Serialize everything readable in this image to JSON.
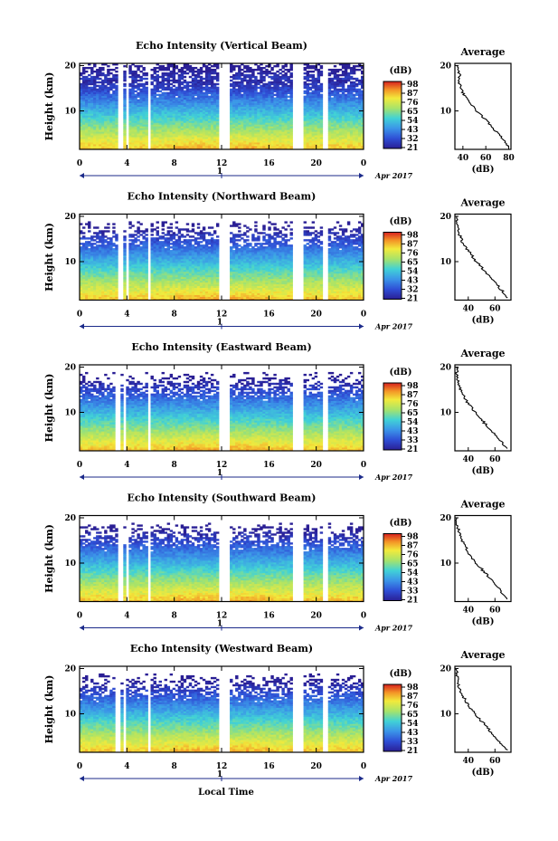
{
  "chart_data": [
    {
      "type": "heatmap",
      "title": "Echo Intensity (Vertical Beam)",
      "ylabel": "Height (km)",
      "x_ticks": [
        "0",
        "4",
        "8",
        "12",
        "16",
        "20",
        "0"
      ],
      "y_ticks": [
        "10",
        "20"
      ],
      "xlim": [
        0,
        24
      ],
      "ylim": [
        1.5,
        20.5
      ],
      "date_marker": "1",
      "date_label": "Apr 2017",
      "colorbar": {
        "label": "(dB)",
        "ticks": [
          "98",
          "87",
          "76",
          "65",
          "54",
          "43",
          "32",
          "21"
        ]
      },
      "data_gaps_hours": [
        [
          3.3,
          3.6
        ],
        [
          4.0,
          4.2
        ],
        [
          5.8,
          6.1
        ],
        [
          11.8,
          12.7
        ],
        [
          18.0,
          18.9
        ],
        [
          20.5,
          20.9
        ]
      ],
      "profile": {
        "title": "Average",
        "xlabel": "(dB)",
        "x_ticks": [
          "40",
          "60",
          "80"
        ],
        "xlim": [
          33,
          82
        ],
        "y_ticks": [
          "10",
          "20"
        ],
        "heights": [
          2,
          4,
          6,
          8,
          10,
          12,
          14,
          16,
          17,
          18,
          19,
          20
        ],
        "values": [
          80,
          74,
          67,
          60,
          52,
          45,
          40,
          37,
          36,
          38,
          35,
          36
        ]
      }
    },
    {
      "type": "heatmap",
      "title": "Echo Intensity (Northward Beam)",
      "ylabel": "Height (km)",
      "x_ticks": [
        "0",
        "4",
        "8",
        "12",
        "16",
        "20",
        "0"
      ],
      "y_ticks": [
        "10",
        "20"
      ],
      "xlim": [
        0,
        24
      ],
      "ylim": [
        1.5,
        20.5
      ],
      "date_marker": "1",
      "date_label": "Apr 2017",
      "colorbar": {
        "label": "(dB)",
        "ticks": [
          "98",
          "87",
          "76",
          "65",
          "54",
          "43",
          "32",
          "21"
        ]
      },
      "data_gaps_hours": [
        [
          3.3,
          3.6
        ],
        [
          3.9,
          4.1
        ],
        [
          5.8,
          6.1
        ],
        [
          11.8,
          12.7
        ],
        [
          18.0,
          18.9
        ],
        [
          20.5,
          20.9
        ]
      ],
      "profile": {
        "title": "Average",
        "xlabel": "(dB)",
        "x_ticks": [
          "40",
          "60"
        ],
        "xlim": [
          30,
          72
        ],
        "y_ticks": [
          "10",
          "20"
        ],
        "heights": [
          2,
          4,
          6,
          8,
          10,
          12,
          14,
          15,
          16,
          18,
          20
        ],
        "values": [
          70,
          64,
          58,
          52,
          46,
          41,
          36,
          35,
          33,
          32,
          31
        ]
      }
    },
    {
      "type": "heatmap",
      "title": "Echo Intensity (Eastward Beam)",
      "ylabel": "Height (km)",
      "x_ticks": [
        "0",
        "4",
        "8",
        "12",
        "16",
        "20",
        "0"
      ],
      "y_ticks": [
        "10",
        "20"
      ],
      "xlim": [
        0,
        24
      ],
      "ylim": [
        1.5,
        20.5
      ],
      "date_marker": "1",
      "date_label": "Apr 2017",
      "colorbar": {
        "label": "(dB)",
        "ticks": [
          "98",
          "87",
          "76",
          "65",
          "54",
          "43",
          "33",
          "21"
        ]
      },
      "data_gaps_hours": [
        [
          3.1,
          3.4
        ],
        [
          3.8,
          4.0
        ],
        [
          5.8,
          6.1
        ],
        [
          11.8,
          12.7
        ],
        [
          18.0,
          18.9
        ],
        [
          20.5,
          20.9
        ]
      ],
      "profile": {
        "title": "Average",
        "xlabel": "(dB)",
        "x_ticks": [
          "40",
          "60"
        ],
        "xlim": [
          30,
          72
        ],
        "y_ticks": [
          "10",
          "20"
        ],
        "heights": [
          2,
          4,
          6,
          8,
          10,
          12,
          14,
          15,
          16,
          18,
          20
        ],
        "values": [
          69,
          63,
          57,
          51,
          45,
          40,
          36,
          34,
          33,
          32,
          31
        ]
      }
    },
    {
      "type": "heatmap",
      "title": "Echo Intensity (Southward Beam)",
      "ylabel": "Height (km)",
      "x_ticks": [
        "0",
        "4",
        "8",
        "12",
        "16",
        "20",
        "0"
      ],
      "y_ticks": [
        "10",
        "20"
      ],
      "xlim": [
        0,
        24
      ],
      "ylim": [
        1.5,
        20.5
      ],
      "date_marker": "1",
      "date_label": "Apr 2017",
      "colorbar": {
        "label": "(dB)",
        "ticks": [
          "98",
          "87",
          "76",
          "65",
          "54",
          "43",
          "33",
          "21"
        ]
      },
      "data_gaps_hours": [
        [
          3.3,
          3.6
        ],
        [
          3.9,
          4.1
        ],
        [
          5.8,
          6.1
        ],
        [
          11.8,
          12.7
        ],
        [
          18.0,
          18.9
        ],
        [
          20.5,
          20.9
        ]
      ],
      "profile": {
        "title": "Average",
        "xlabel": "(dB)",
        "x_ticks": [
          "40",
          "60"
        ],
        "xlim": [
          30,
          72
        ],
        "y_ticks": [
          "10",
          "20"
        ],
        "heights": [
          2,
          4,
          6,
          8,
          10,
          12,
          14,
          15,
          16,
          18,
          20
        ],
        "values": [
          70,
          64,
          58,
          52,
          46,
          41,
          37,
          35,
          34,
          32,
          31
        ]
      }
    },
    {
      "type": "heatmap",
      "title": "Echo Intensity (Westward Beam)",
      "ylabel": "Height (km)",
      "x_ticks": [
        "0",
        "4",
        "8",
        "12",
        "16",
        "20",
        "0"
      ],
      "y_ticks": [
        "10",
        "20"
      ],
      "xlim": [
        0,
        24
      ],
      "ylim": [
        1.5,
        20.5
      ],
      "date_marker": "1",
      "date_label": "Apr 2017",
      "xlabel": "Local Time",
      "colorbar": {
        "label": "(dB)",
        "ticks": [
          "98",
          "87",
          "76",
          "65",
          "54",
          "43",
          "33",
          "21"
        ]
      },
      "data_gaps_hours": [
        [
          3.1,
          3.4
        ],
        [
          3.8,
          4.0
        ],
        [
          5.8,
          6.1
        ],
        [
          11.8,
          12.7
        ],
        [
          18.0,
          18.9
        ],
        [
          20.5,
          20.9
        ]
      ],
      "profile": {
        "title": "Average",
        "xlabel": "(dB)",
        "x_ticks": [
          "40",
          "60"
        ],
        "xlim": [
          30,
          72
        ],
        "y_ticks": [
          "10",
          "20"
        ],
        "heights": [
          2,
          4,
          6,
          8,
          10,
          12,
          14,
          15,
          16,
          18,
          20
        ],
        "values": [
          69,
          63,
          57,
          51,
          45,
          40,
          36,
          34,
          33,
          32,
          31
        ]
      }
    }
  ]
}
